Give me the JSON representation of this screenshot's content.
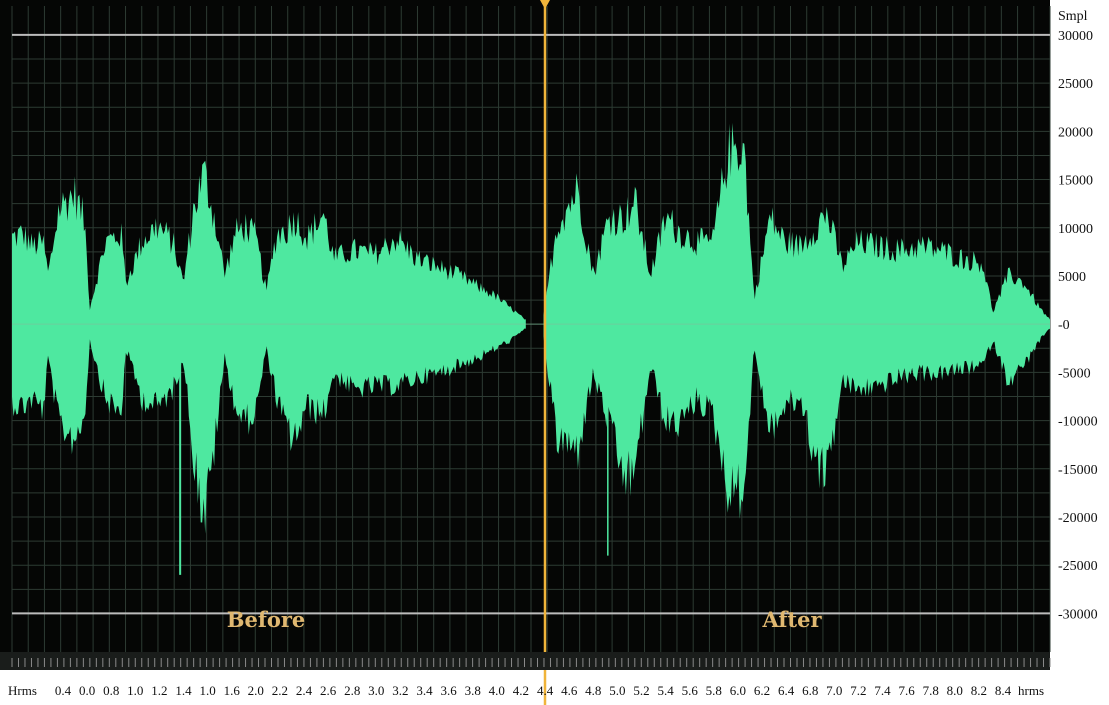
{
  "y_axis": {
    "unit": "Smpl",
    "ticks": [
      "30000",
      "25000",
      "20000",
      "15000",
      "10000",
      "5000",
      "-0",
      "-5000",
      "-10000",
      "-15000",
      "-20000",
      "-25000",
      "-30000"
    ]
  },
  "x_axis": {
    "start_label": "Hrms",
    "end_label": "hrms",
    "ticks": [
      "0.4",
      "0.0",
      "0.8",
      "1.0",
      "1.2",
      "1.4",
      "1.0",
      "1.6",
      "2.0",
      "2.2",
      "2.4",
      "2.6",
      "2.8",
      "3.0",
      "3.2",
      "3.4",
      "3.6",
      "3.8",
      "4.0",
      "4.2",
      "4.4",
      "4.6",
      "4.8",
      "5.0",
      "5.2",
      "5.4",
      "5.6",
      "5.8",
      "6.0",
      "6.2",
      "6.4",
      "6.8",
      "7.0",
      "7.2",
      "7.4",
      "7.6",
      "7.8",
      "8.0",
      "8.2",
      "8.4"
    ]
  },
  "segments": {
    "before": "Before",
    "after": "After"
  },
  "colors": {
    "background": "#050605",
    "grid": "#2d3b33",
    "waveform": "#4ee8a0",
    "cursor": "#f0b43a",
    "clip_line": "#bcbcbc",
    "label": "#e0b871"
  },
  "clip_levels": [
    30000,
    -30000
  ],
  "chart_data": {
    "type": "area",
    "ylim": [
      -34000,
      33000
    ],
    "ylabel": "Smpl",
    "x_range_index": [
      0,
      1
    ],
    "cursor_position": 0.5,
    "before_envelope": [
      {
        "x": 0.0,
        "up": 10500,
        "dn": -9500
      },
      {
        "x": 0.01,
        "up": 11000,
        "dn": -10000
      },
      {
        "x": 0.02,
        "up": 9500,
        "dn": -9000
      },
      {
        "x": 0.03,
        "up": 10000,
        "dn": -10500
      },
      {
        "x": 0.035,
        "up": 6000,
        "dn": -4000
      },
      {
        "x": 0.045,
        "up": 14000,
        "dn": -12000
      },
      {
        "x": 0.06,
        "up": 16000,
        "dn": -14000
      },
      {
        "x": 0.07,
        "up": 12500,
        "dn": -11000
      },
      {
        "x": 0.075,
        "up": 2000,
        "dn": -2000
      },
      {
        "x": 0.09,
        "up": 10000,
        "dn": -9000
      },
      {
        "x": 0.105,
        "up": 11000,
        "dn": -11000
      },
      {
        "x": 0.11,
        "up": 5000,
        "dn": -3000
      },
      {
        "x": 0.125,
        "up": 10000,
        "dn": -9000
      },
      {
        "x": 0.14,
        "up": 12000,
        "dn": -10000
      },
      {
        "x": 0.155,
        "up": 10000,
        "dn": -8000
      },
      {
        "x": 0.165,
        "up": 5000,
        "dn": -4000
      },
      {
        "x": 0.175,
        "up": 14000,
        "dn": -16000
      },
      {
        "x": 0.185,
        "up": 18500,
        "dn": -24000
      },
      {
        "x": 0.195,
        "up": 13000,
        "dn": -15000
      },
      {
        "x": 0.205,
        "up": 6000,
        "dn": -4000
      },
      {
        "x": 0.215,
        "up": 11000,
        "dn": -10000
      },
      {
        "x": 0.225,
        "up": 12000,
        "dn": -12000
      },
      {
        "x": 0.235,
        "up": 10500,
        "dn": -10500
      },
      {
        "x": 0.245,
        "up": 4000,
        "dn": -3000
      },
      {
        "x": 0.255,
        "up": 11000,
        "dn": -9000
      },
      {
        "x": 0.265,
        "up": 11500,
        "dn": -13000
      },
      {
        "x": 0.272,
        "up": 13000,
        "dn": -14000
      },
      {
        "x": 0.285,
        "up": 10500,
        "dn": -10000
      },
      {
        "x": 0.3,
        "up": 13500,
        "dn": -11000
      },
      {
        "x": 0.31,
        "up": 8000,
        "dn": -6000
      },
      {
        "x": 0.33,
        "up": 9000,
        "dn": -8000
      },
      {
        "x": 0.35,
        "up": 8500,
        "dn": -7500
      },
      {
        "x": 0.37,
        "up": 10500,
        "dn": -7500
      },
      {
        "x": 0.39,
        "up": 8000,
        "dn": -6500
      },
      {
        "x": 0.41,
        "up": 7000,
        "dn": -6000
      },
      {
        "x": 0.43,
        "up": 6000,
        "dn": -5000
      },
      {
        "x": 0.45,
        "up": 4500,
        "dn": -4000
      },
      {
        "x": 0.465,
        "up": 3500,
        "dn": -3000
      },
      {
        "x": 0.48,
        "up": 2000,
        "dn": -2000
      },
      {
        "x": 0.495,
        "up": 500,
        "dn": -500
      }
    ],
    "after_envelope": [
      {
        "x": 0.512,
        "up": 1000,
        "dn": -1500
      },
      {
        "x": 0.525,
        "up": 12000,
        "dn": -14000
      },
      {
        "x": 0.545,
        "up": 16500,
        "dn": -15500
      },
      {
        "x": 0.56,
        "up": 6000,
        "dn": -6000
      },
      {
        "x": 0.575,
        "up": 13000,
        "dn": -12000
      },
      {
        "x": 0.59,
        "up": 13000,
        "dn": -19000
      },
      {
        "x": 0.6,
        "up": 15000,
        "dn": -18000
      },
      {
        "x": 0.615,
        "up": 6000,
        "dn": -5000
      },
      {
        "x": 0.63,
        "up": 13000,
        "dn": -12000
      },
      {
        "x": 0.645,
        "up": 11000,
        "dn": -12000
      },
      {
        "x": 0.66,
        "up": 10000,
        "dn": -9000
      },
      {
        "x": 0.675,
        "up": 10000,
        "dn": -11000
      },
      {
        "x": 0.69,
        "up": 21000,
        "dn": -20000
      },
      {
        "x": 0.705,
        "up": 22000,
        "dn": -20500
      },
      {
        "x": 0.715,
        "up": 3000,
        "dn": -3000
      },
      {
        "x": 0.73,
        "up": 13000,
        "dn": -13000
      },
      {
        "x": 0.745,
        "up": 10000,
        "dn": -10000
      },
      {
        "x": 0.76,
        "up": 9500,
        "dn": -9000
      },
      {
        "x": 0.775,
        "up": 12000,
        "dn": -17000
      },
      {
        "x": 0.785,
        "up": 13500,
        "dn": -18000
      },
      {
        "x": 0.8,
        "up": 7000,
        "dn": -7000
      },
      {
        "x": 0.815,
        "up": 10000,
        "dn": -8000
      },
      {
        "x": 0.835,
        "up": 9500,
        "dn": -7500
      },
      {
        "x": 0.855,
        "up": 9000,
        "dn": -6500
      },
      {
        "x": 0.875,
        "up": 9500,
        "dn": -6000
      },
      {
        "x": 0.895,
        "up": 9000,
        "dn": -6000
      },
      {
        "x": 0.915,
        "up": 8000,
        "dn": -5500
      },
      {
        "x": 0.935,
        "up": 7500,
        "dn": -5000
      },
      {
        "x": 0.945,
        "up": 1500,
        "dn": -2000
      },
      {
        "x": 0.96,
        "up": 6000,
        "dn": -7000
      },
      {
        "x": 0.975,
        "up": 5000,
        "dn": -5000
      },
      {
        "x": 0.99,
        "up": 2000,
        "dn": -2000
      },
      {
        "x": 1.0,
        "up": 500,
        "dn": -500
      }
    ]
  }
}
